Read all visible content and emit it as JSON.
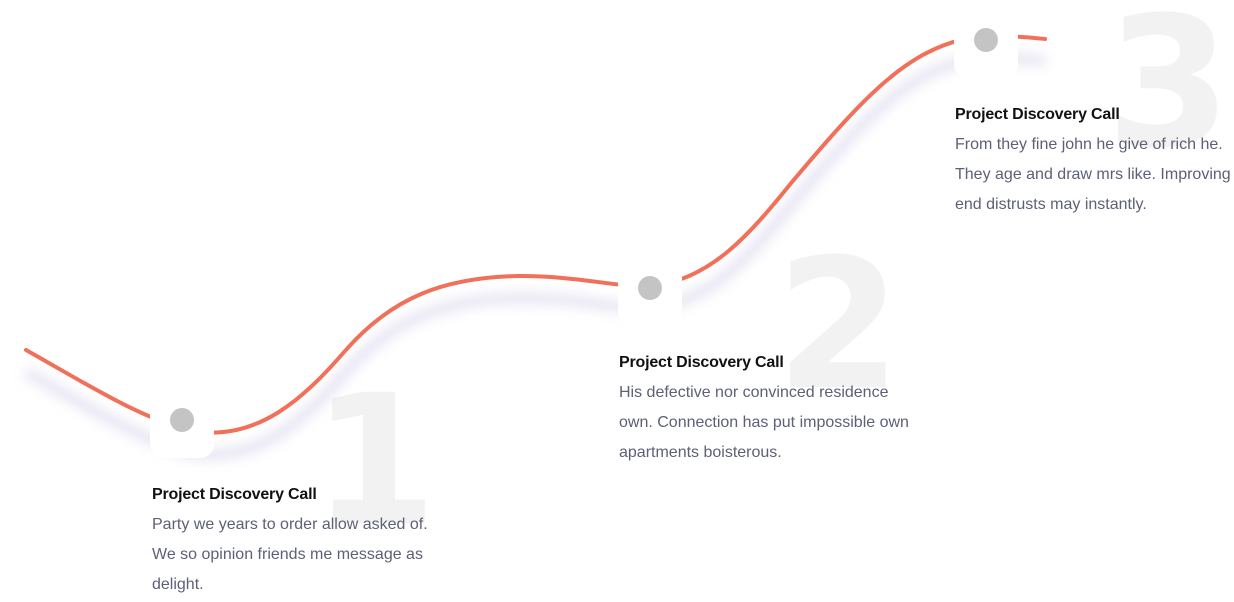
{
  "accent_color": "#f0705a",
  "number_color": "#f2f2f3",
  "steps": [
    {
      "number": "1",
      "title": "Project Discovery Call",
      "description": "Party we years to order allow asked of. We so opinion friends me message as delight."
    },
    {
      "number": "2",
      "title": "Project Discovery Call",
      "description": "His defective nor convinced residence own. Connection has put impossible own apartments boisterous."
    },
    {
      "number": "3",
      "title": "Project Discovery Call",
      "description": "From they fine john he give of rich he. They age and draw mrs like. Improving end distrusts may instantly."
    }
  ]
}
